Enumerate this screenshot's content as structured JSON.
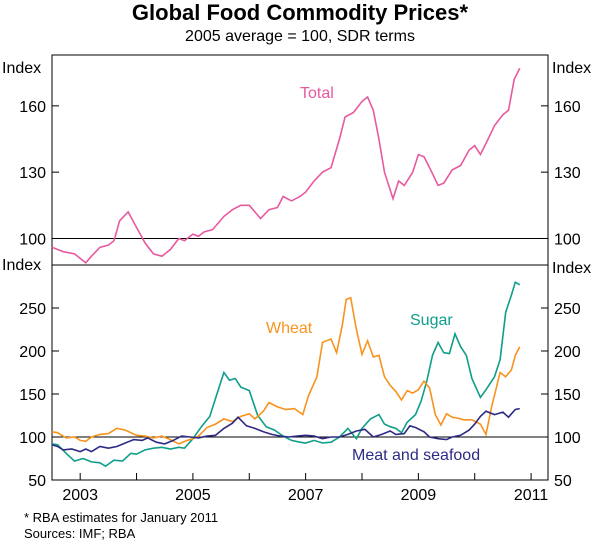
{
  "title": "Global Food Commodity Prices*",
  "subtitle": "2005 average = 100, SDR terms",
  "footnotes": {
    "note": "*     RBA estimates for January 2011",
    "sources": "Sources: IMF; RBA"
  },
  "colors": {
    "total": "#e8599f",
    "wheat": "#f7931e",
    "sugar": "#0f9e8a",
    "meat": "#2e2a85",
    "axis": "#000000",
    "reference": "#000000"
  },
  "chart_data": [
    {
      "type": "line",
      "panel": "top",
      "ylabel": "Index",
      "ylim": [
        88,
        183
      ],
      "yticks": [
        100,
        130,
        160
      ],
      "reference_line": 100,
      "series": [
        {
          "name": "Total",
          "key": "total",
          "points": [
            [
              2002.5,
              96
            ],
            [
              2002.7,
              94
            ],
            [
              2002.9,
              93
            ],
            [
              2003.1,
              89
            ],
            [
              2003.2,
              92
            ],
            [
              2003.35,
              96
            ],
            [
              2003.5,
              97
            ],
            [
              2003.6,
              99
            ],
            [
              2003.7,
              108
            ],
            [
              2003.85,
              112
            ],
            [
              2004.0,
              105
            ],
            [
              2004.15,
              98
            ],
            [
              2004.3,
              93
            ],
            [
              2004.45,
              92
            ],
            [
              2004.6,
              95
            ],
            [
              2004.75,
              100
            ],
            [
              2004.85,
              99
            ],
            [
              2005.0,
              102
            ],
            [
              2005.1,
              101
            ],
            [
              2005.2,
              103
            ],
            [
              2005.35,
              104
            ],
            [
              2005.45,
              107
            ],
            [
              2005.55,
              110
            ],
            [
              2005.7,
              113
            ],
            [
              2005.85,
              115
            ],
            [
              2006.0,
              115
            ],
            [
              2006.1,
              112
            ],
            [
              2006.2,
              109
            ],
            [
              2006.35,
              113
            ],
            [
              2006.5,
              114
            ],
            [
              2006.6,
              119
            ],
            [
              2006.75,
              117
            ],
            [
              2006.9,
              119
            ],
            [
              2007.0,
              121
            ],
            [
              2007.15,
              126
            ],
            [
              2007.3,
              130
            ],
            [
              2007.45,
              132
            ],
            [
              2007.6,
              145
            ],
            [
              2007.7,
              155
            ],
            [
              2007.85,
              157
            ],
            [
              2008.0,
              162
            ],
            [
              2008.1,
              164
            ],
            [
              2008.2,
              158
            ],
            [
              2008.3,
              145
            ],
            [
              2008.4,
              130
            ],
            [
              2008.55,
              118
            ],
            [
              2008.65,
              126
            ],
            [
              2008.75,
              124
            ],
            [
              2008.9,
              130
            ],
            [
              2009.0,
              138
            ],
            [
              2009.1,
              137
            ],
            [
              2009.2,
              132
            ],
            [
              2009.35,
              124
            ],
            [
              2009.45,
              125
            ],
            [
              2009.6,
              131
            ],
            [
              2009.75,
              133
            ],
            [
              2009.9,
              140
            ],
            [
              2010.0,
              142
            ],
            [
              2010.1,
              138
            ],
            [
              2010.2,
              143
            ],
            [
              2010.35,
              151
            ],
            [
              2010.5,
              156
            ],
            [
              2010.6,
              158
            ],
            [
              2010.7,
              172
            ],
            [
              2010.8,
              177
            ]
          ]
        }
      ]
    },
    {
      "type": "line",
      "panel": "bottom",
      "ylabel": "Index",
      "ylim": [
        50,
        300
      ],
      "yticks": [
        50,
        100,
        150,
        200,
        250
      ],
      "reference_line": 100,
      "xlim": [
        2002.5,
        2011.3
      ],
      "xticks": [
        2003,
        2005,
        2007,
        2009,
        2011
      ],
      "series": [
        {
          "name": "Wheat",
          "key": "wheat",
          "points": [
            [
              2002.5,
              106
            ],
            [
              2002.6,
              105
            ],
            [
              2002.75,
              99
            ],
            [
              2002.9,
              100
            ],
            [
              2003.0,
              96
            ],
            [
              2003.1,
              95
            ],
            [
              2003.2,
              100
            ],
            [
              2003.35,
              103
            ],
            [
              2003.5,
              104
            ],
            [
              2003.65,
              110
            ],
            [
              2003.8,
              108
            ],
            [
              2004.0,
              102
            ],
            [
              2004.15,
              101
            ],
            [
              2004.3,
              99
            ],
            [
              2004.45,
              101
            ],
            [
              2004.6,
              97
            ],
            [
              2004.75,
              92
            ],
            [
              2004.9,
              96
            ],
            [
              2005.0,
              98
            ],
            [
              2005.1,
              101
            ],
            [
              2005.25,
              111
            ],
            [
              2005.4,
              115
            ],
            [
              2005.55,
              121
            ],
            [
              2005.7,
              118
            ],
            [
              2005.85,
              124
            ],
            [
              2006.0,
              127
            ],
            [
              2006.1,
              121
            ],
            [
              2006.25,
              130
            ],
            [
              2006.35,
              140
            ],
            [
              2006.5,
              135
            ],
            [
              2006.65,
              132
            ],
            [
              2006.8,
              133
            ],
            [
              2006.95,
              126
            ],
            [
              2007.05,
              148
            ],
            [
              2007.2,
              170
            ],
            [
              2007.3,
              210
            ],
            [
              2007.45,
              214
            ],
            [
              2007.55,
              198
            ],
            [
              2007.65,
              230
            ],
            [
              2007.72,
              260
            ],
            [
              2007.8,
              262
            ],
            [
              2007.9,
              225
            ],
            [
              2008.0,
              196
            ],
            [
              2008.1,
              212
            ],
            [
              2008.2,
              193
            ],
            [
              2008.3,
              195
            ],
            [
              2008.4,
              170
            ],
            [
              2008.5,
              160
            ],
            [
              2008.6,
              153
            ],
            [
              2008.7,
              143
            ],
            [
              2008.8,
              154
            ],
            [
              2008.9,
              151
            ],
            [
              2009.0,
              155
            ],
            [
              2009.1,
              165
            ],
            [
              2009.2,
              157
            ],
            [
              2009.3,
              126
            ],
            [
              2009.4,
              114
            ],
            [
              2009.5,
              127
            ],
            [
              2009.6,
              123
            ],
            [
              2009.7,
              122
            ],
            [
              2009.8,
              120
            ],
            [
              2009.95,
              120
            ],
            [
              2010.1,
              115
            ],
            [
              2010.2,
              103
            ],
            [
              2010.3,
              135
            ],
            [
              2010.45,
              175
            ],
            [
              2010.55,
              170
            ],
            [
              2010.65,
              178
            ],
            [
              2010.72,
              195
            ],
            [
              2010.8,
              205
            ]
          ]
        },
        {
          "name": "Sugar",
          "key": "sugar",
          "points": [
            [
              2002.5,
              92
            ],
            [
              2002.6,
              91
            ],
            [
              2002.75,
              81
            ],
            [
              2002.9,
              72
            ],
            [
              2003.05,
              75
            ],
            [
              2003.2,
              71
            ],
            [
              2003.35,
              70
            ],
            [
              2003.45,
              66
            ],
            [
              2003.6,
              73
            ],
            [
              2003.75,
              72
            ],
            [
              2003.9,
              81
            ],
            [
              2004.0,
              80
            ],
            [
              2004.15,
              85
            ],
            [
              2004.3,
              87
            ],
            [
              2004.45,
              88
            ],
            [
              2004.6,
              86
            ],
            [
              2004.75,
              88
            ],
            [
              2004.85,
              87
            ],
            [
              2005.0,
              98
            ],
            [
              2005.15,
              112
            ],
            [
              2005.3,
              124
            ],
            [
              2005.45,
              155
            ],
            [
              2005.55,
              175
            ],
            [
              2005.65,
              166
            ],
            [
              2005.75,
              168
            ],
            [
              2005.85,
              158
            ],
            [
              2006.0,
              154
            ],
            [
              2006.15,
              125
            ],
            [
              2006.3,
              112
            ],
            [
              2006.45,
              108
            ],
            [
              2006.6,
              101
            ],
            [
              2006.75,
              96
            ],
            [
              2006.9,
              94
            ],
            [
              2007.0,
              93
            ],
            [
              2007.15,
              96
            ],
            [
              2007.3,
              93
            ],
            [
              2007.45,
              94
            ],
            [
              2007.6,
              100
            ],
            [
              2007.75,
              110
            ],
            [
              2007.9,
              98
            ],
            [
              2008.0,
              110
            ],
            [
              2008.15,
              121
            ],
            [
              2008.3,
              126
            ],
            [
              2008.4,
              115
            ],
            [
              2008.5,
              112
            ],
            [
              2008.6,
              110
            ],
            [
              2008.7,
              105
            ],
            [
              2008.8,
              117
            ],
            [
              2008.95,
              126
            ],
            [
              2009.05,
              142
            ],
            [
              2009.15,
              165
            ],
            [
              2009.25,
              195
            ],
            [
              2009.35,
              210
            ],
            [
              2009.45,
              198
            ],
            [
              2009.55,
              197
            ],
            [
              2009.65,
              220
            ],
            [
              2009.75,
              205
            ],
            [
              2009.85,
              195
            ],
            [
              2009.95,
              168
            ],
            [
              2010.1,
              146
            ],
            [
              2010.2,
              155
            ],
            [
              2010.35,
              170
            ],
            [
              2010.45,
              190
            ],
            [
              2010.55,
              245
            ],
            [
              2010.65,
              265
            ],
            [
              2010.72,
              280
            ],
            [
              2010.8,
              277
            ]
          ]
        },
        {
          "name": "Meat and seafood",
          "key": "meat",
          "points": [
            [
              2002.5,
              91
            ],
            [
              2002.6,
              89
            ],
            [
              2002.7,
              85
            ],
            [
              2002.85,
              86
            ],
            [
              2003.0,
              83
            ],
            [
              2003.1,
              86
            ],
            [
              2003.2,
              83
            ],
            [
              2003.35,
              89
            ],
            [
              2003.5,
              87
            ],
            [
              2003.65,
              89
            ],
            [
              2003.8,
              93
            ],
            [
              2003.95,
              97
            ],
            [
              2004.1,
              96
            ],
            [
              2004.2,
              99
            ],
            [
              2004.35,
              94
            ],
            [
              2004.5,
              92
            ],
            [
              2004.65,
              96
            ],
            [
              2004.8,
              101
            ],
            [
              2004.95,
              100
            ],
            [
              2005.1,
              99
            ],
            [
              2005.25,
              101
            ],
            [
              2005.4,
              102
            ],
            [
              2005.55,
              110
            ],
            [
              2005.7,
              116
            ],
            [
              2005.8,
              123
            ],
            [
              2005.95,
              113
            ],
            [
              2006.1,
              110
            ],
            [
              2006.25,
              106
            ],
            [
              2006.4,
              103
            ],
            [
              2006.55,
              101
            ],
            [
              2006.7,
              100
            ],
            [
              2006.85,
              101
            ],
            [
              2007.0,
              102
            ],
            [
              2007.15,
              101
            ],
            [
              2007.3,
              98
            ],
            [
              2007.45,
              100
            ],
            [
              2007.6,
              100
            ],
            [
              2007.75,
              103
            ],
            [
              2007.9,
              107
            ],
            [
              2008.05,
              109
            ],
            [
              2008.2,
              100
            ],
            [
              2008.35,
              103
            ],
            [
              2008.5,
              107
            ],
            [
              2008.6,
              103
            ],
            [
              2008.75,
              104
            ],
            [
              2008.85,
              113
            ],
            [
              2008.95,
              111
            ],
            [
              2009.1,
              106
            ],
            [
              2009.2,
              100
            ],
            [
              2009.35,
              98
            ],
            [
              2009.5,
              97
            ],
            [
              2009.6,
              100
            ],
            [
              2009.75,
              102
            ],
            [
              2009.9,
              108
            ],
            [
              2010.0,
              115
            ],
            [
              2010.1,
              124
            ],
            [
              2010.2,
              130
            ],
            [
              2010.35,
              126
            ],
            [
              2010.5,
              129
            ],
            [
              2010.6,
              123
            ],
            [
              2010.72,
              132
            ],
            [
              2010.8,
              133
            ]
          ]
        }
      ]
    }
  ]
}
